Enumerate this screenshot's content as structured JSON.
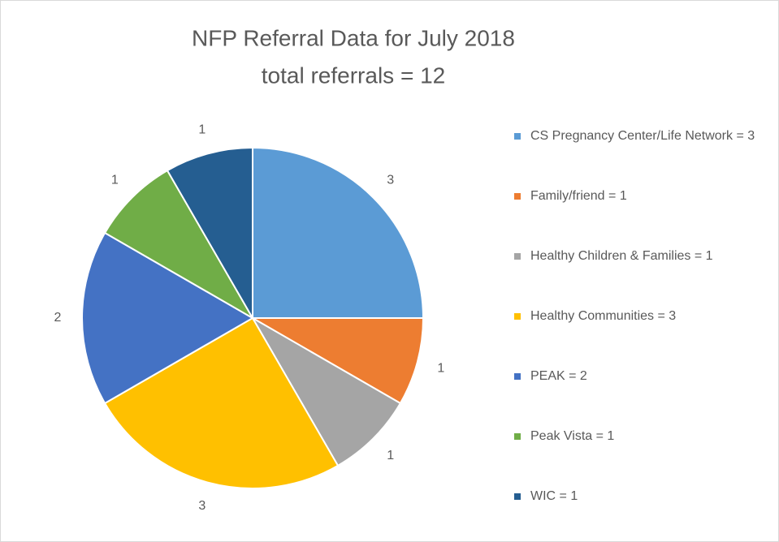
{
  "chart_data": {
    "type": "pie",
    "title": "NFP Referral Data for July 2018",
    "subtitle": "total referrals = 12",
    "categories": [
      "CS Pregnancy Center/Life Network = 3",
      "Family/friend = 1",
      "Healthy Children & Families = 1",
      "Healthy Communities = 3",
      "PEAK = 2",
      "Peak Vista = 1",
      "WIC = 1"
    ],
    "values": [
      3,
      1,
      1,
      3,
      2,
      1,
      1
    ],
    "colors": [
      "#5b9bd5",
      "#ed7d31",
      "#a5a5a5",
      "#ffc000",
      "#4472c4",
      "#70ad47",
      "#255e91"
    ],
    "legend": "right"
  }
}
